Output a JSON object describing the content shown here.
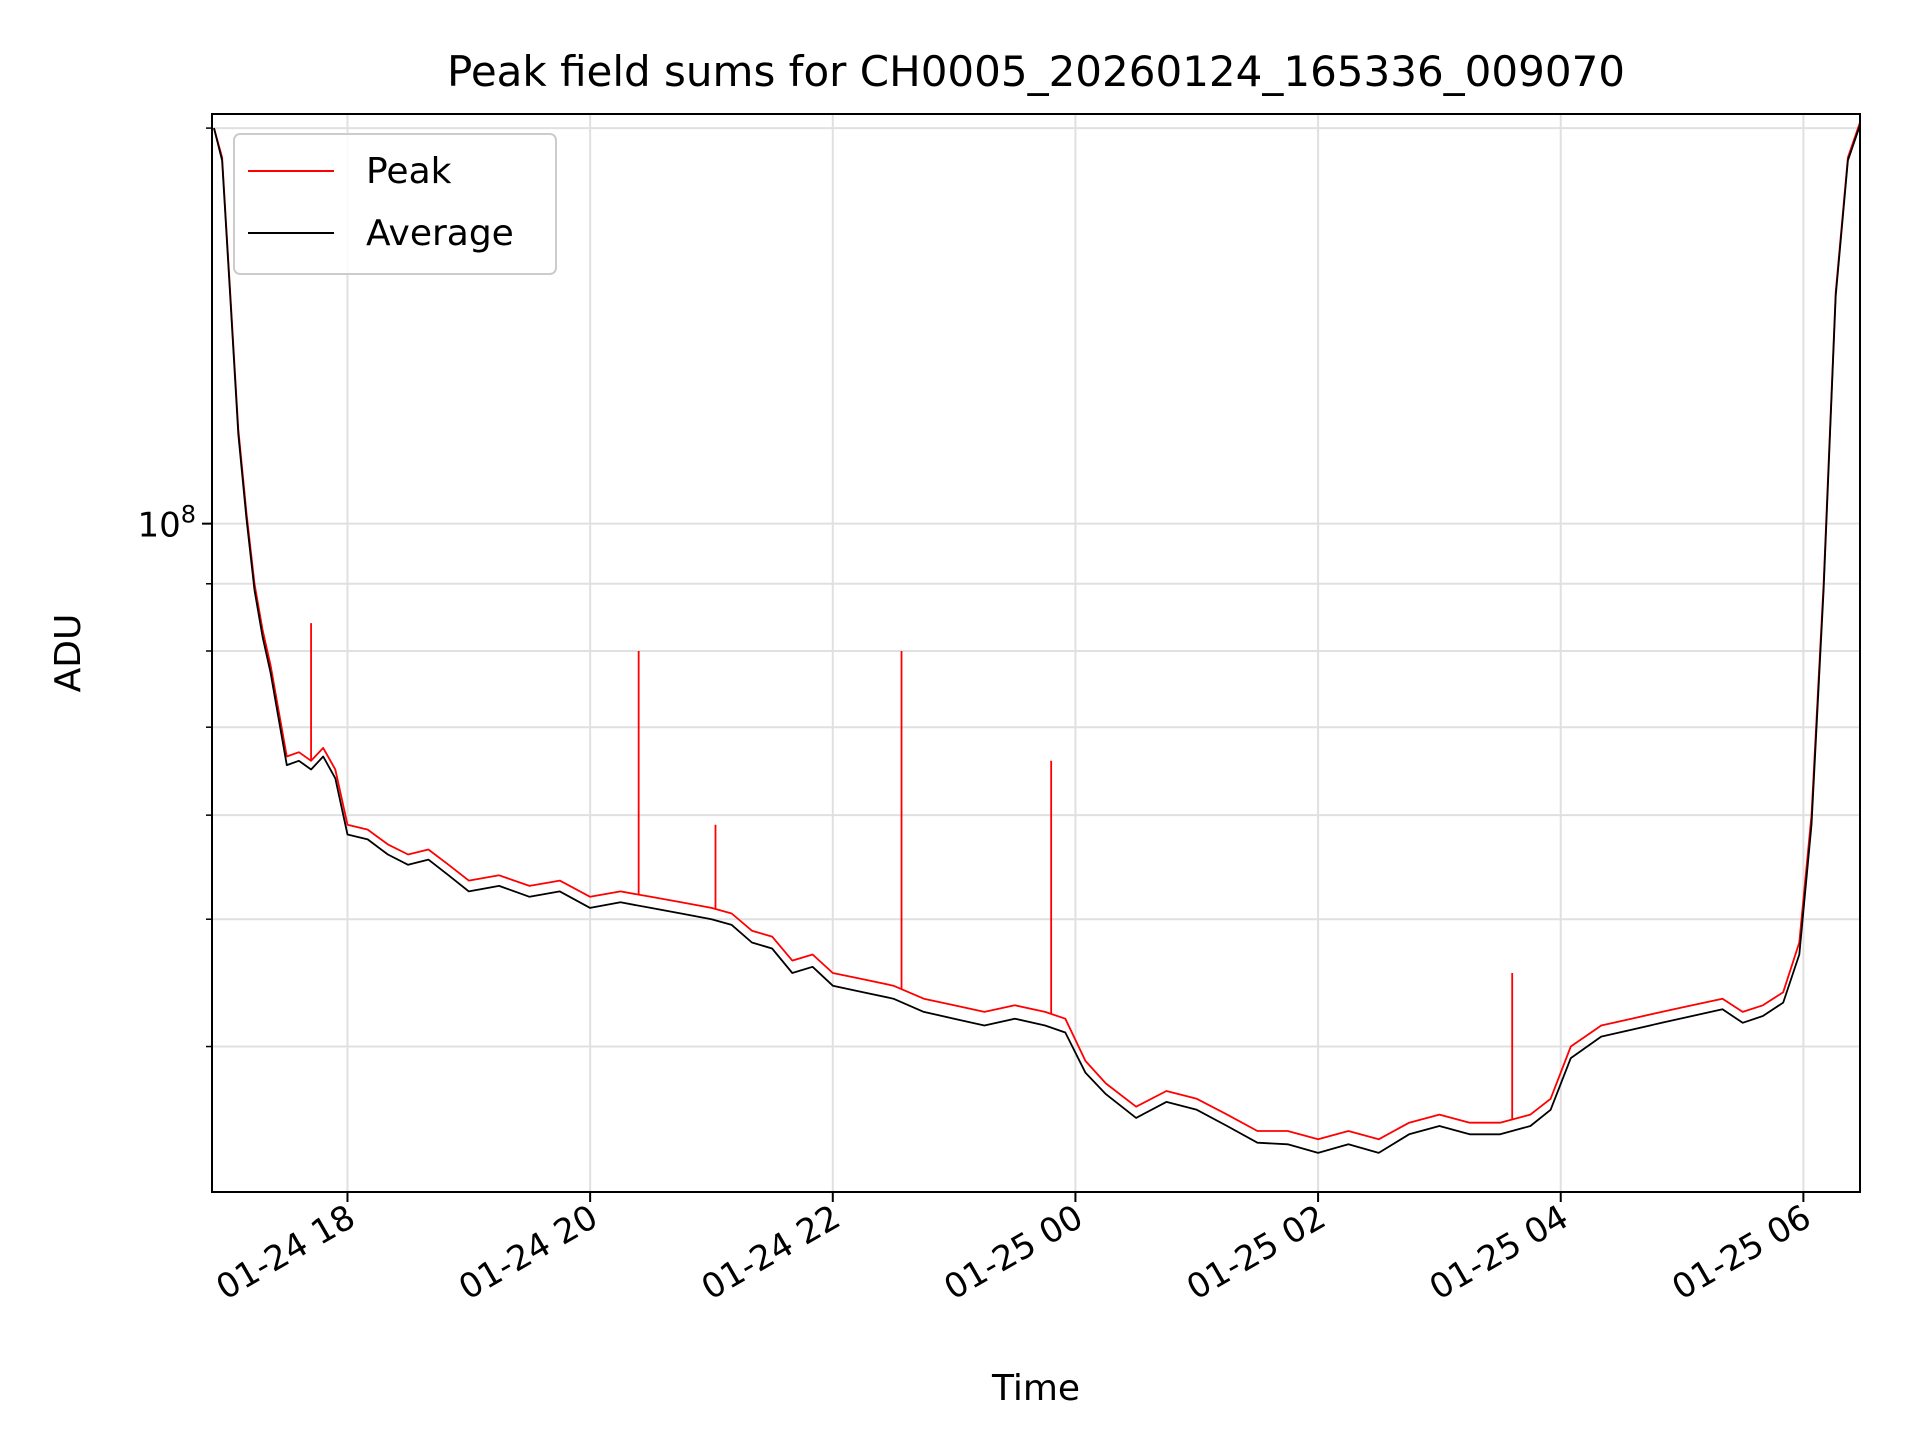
{
  "chart_data": {
    "type": "line",
    "title": "Peak field sums for CH0005_20260124_165336_009070",
    "xlabel": "Time",
    "ylabel": "ADU",
    "y_scale": "log",
    "grid": true,
    "legend_position": "top-left",
    "colors": {
      "peak": "#ff0000",
      "average": "#000000",
      "grid": "#e0e0e0"
    },
    "x_ticks": [
      "01-24 18",
      "01-24 20",
      "01-24 22",
      "01-25 00",
      "01-25 02",
      "01-25 04",
      "01-25 06"
    ],
    "x_tick_times": [
      "2026-01-24T18:00",
      "2026-01-24T20:00",
      "2026-01-24T22:00",
      "2026-01-25T00:00",
      "2026-01-25T02:00",
      "2026-01-25T04:00",
      "2026-01-25T06:00"
    ],
    "xlim": [
      "2026-01-24T16:53",
      "2026-01-25T06:28"
    ],
    "y_major_tick_label": "10^8",
    "ylim": [
      31000000,
      205000000
    ],
    "y_minor_ticks": [
      40000000,
      50000000,
      60000000,
      70000000,
      80000000,
      90000000,
      200000000
    ],
    "series": [
      {
        "name": "Peak",
        "x": [
          "2026-01-24T16:54",
          "2026-01-24T16:58",
          "2026-01-24T17:02",
          "2026-01-24T17:06",
          "2026-01-24T17:10",
          "2026-01-24T17:14",
          "2026-01-24T17:18",
          "2026-01-24T17:22",
          "2026-01-24T17:26",
          "2026-01-24T17:30",
          "2026-01-24T17:36",
          "2026-01-24T17:42",
          "2026-01-24T17:48",
          "2026-01-24T17:54",
          "2026-01-24T18:00",
          "2026-01-24T18:10",
          "2026-01-24T18:20",
          "2026-01-24T18:30",
          "2026-01-24T18:40",
          "2026-01-24T18:50",
          "2026-01-24T19:00",
          "2026-01-24T19:15",
          "2026-01-24T19:30",
          "2026-01-24T19:45",
          "2026-01-24T20:00",
          "2026-01-24T20:15",
          "2026-01-24T20:30",
          "2026-01-24T20:45",
          "2026-01-24T21:00",
          "2026-01-24T21:10",
          "2026-01-24T21:20",
          "2026-01-24T21:30",
          "2026-01-24T21:40",
          "2026-01-24T21:50",
          "2026-01-24T22:00",
          "2026-01-24T22:15",
          "2026-01-24T22:30",
          "2026-01-24T22:45",
          "2026-01-24T23:00",
          "2026-01-24T23:15",
          "2026-01-24T23:30",
          "2026-01-24T23:45",
          "2026-01-24T23:55",
          "2026-01-25T00:05",
          "2026-01-25T00:15",
          "2026-01-25T00:30",
          "2026-01-25T00:45",
          "2026-01-25T01:00",
          "2026-01-25T01:15",
          "2026-01-25T01:30",
          "2026-01-25T01:45",
          "2026-01-25T02:00",
          "2026-01-25T02:15",
          "2026-01-25T02:30",
          "2026-01-25T02:45",
          "2026-01-25T03:00",
          "2026-01-25T03:15",
          "2026-01-25T03:30",
          "2026-01-25T03:45",
          "2026-01-25T03:55",
          "2026-01-25T04:05",
          "2026-01-25T04:20",
          "2026-01-25T04:35",
          "2026-01-25T04:50",
          "2026-01-25T05:05",
          "2026-01-25T05:20",
          "2026-01-25T05:30",
          "2026-01-25T05:40",
          "2026-01-25T05:50",
          "2026-01-25T05:58",
          "2026-01-25T06:04",
          "2026-01-25T06:10",
          "2026-01-25T06:16",
          "2026-01-25T06:22",
          "2026-01-25T06:28"
        ],
        "values": [
          200000000,
          190000000,
          150000000,
          118000000,
          102000000,
          90000000,
          83000000,
          78000000,
          72000000,
          66500000,
          67000000,
          66000000,
          67500000,
          65000000,
          59000000,
          58500000,
          57000000,
          56000000,
          56500000,
          55000000,
          53500000,
          54000000,
          53000000,
          53500000,
          52000000,
          52500000,
          52000000,
          51500000,
          51000000,
          50500000,
          49000000,
          48500000,
          46500000,
          47000000,
          45500000,
          45000000,
          44500000,
          43500000,
          43000000,
          42500000,
          43000000,
          42500000,
          42000000,
          39000000,
          37500000,
          36000000,
          37000000,
          36500000,
          35500000,
          34500000,
          34500000,
          34000000,
          34500000,
          34000000,
          35000000,
          35500000,
          35000000,
          35000000,
          35500000,
          36500000,
          40000000,
          41500000,
          42000000,
          42500000,
          43000000,
          43500000,
          42500000,
          43000000,
          44000000,
          48000000,
          60000000,
          90000000,
          150000000,
          190000000,
          202000000
        ]
      },
      {
        "name": "Average",
        "x": [
          "2026-01-24T16:54",
          "2026-01-24T16:58",
          "2026-01-24T17:02",
          "2026-01-24T17:06",
          "2026-01-24T17:10",
          "2026-01-24T17:14",
          "2026-01-24T17:18",
          "2026-01-24T17:22",
          "2026-01-24T17:26",
          "2026-01-24T17:30",
          "2026-01-24T17:36",
          "2026-01-24T17:42",
          "2026-01-24T17:48",
          "2026-01-24T17:54",
          "2026-01-24T18:00",
          "2026-01-24T18:10",
          "2026-01-24T18:20",
          "2026-01-24T18:30",
          "2026-01-24T18:40",
          "2026-01-24T18:50",
          "2026-01-24T19:00",
          "2026-01-24T19:15",
          "2026-01-24T19:30",
          "2026-01-24T19:45",
          "2026-01-24T20:00",
          "2026-01-24T20:15",
          "2026-01-24T20:30",
          "2026-01-24T20:45",
          "2026-01-24T21:00",
          "2026-01-24T21:10",
          "2026-01-24T21:20",
          "2026-01-24T21:30",
          "2026-01-24T21:40",
          "2026-01-24T21:50",
          "2026-01-24T22:00",
          "2026-01-24T22:15",
          "2026-01-24T22:30",
          "2026-01-24T22:45",
          "2026-01-24T23:00",
          "2026-01-24T23:15",
          "2026-01-24T23:30",
          "2026-01-24T23:45",
          "2026-01-24T23:55",
          "2026-01-25T00:05",
          "2026-01-25T00:15",
          "2026-01-25T00:30",
          "2026-01-25T00:45",
          "2026-01-25T01:00",
          "2026-01-25T01:15",
          "2026-01-25T01:30",
          "2026-01-25T01:45",
          "2026-01-25T02:00",
          "2026-01-25T02:15",
          "2026-01-25T02:30",
          "2026-01-25T02:45",
          "2026-01-25T03:00",
          "2026-01-25T03:15",
          "2026-01-25T03:30",
          "2026-01-25T03:45",
          "2026-01-25T03:55",
          "2026-01-25T04:05",
          "2026-01-25T04:20",
          "2026-01-25T04:35",
          "2026-01-25T04:50",
          "2026-01-25T05:05",
          "2026-01-25T05:20",
          "2026-01-25T05:30",
          "2026-01-25T05:40",
          "2026-01-25T05:50",
          "2026-01-25T05:58",
          "2026-01-25T06:04",
          "2026-01-25T06:10",
          "2026-01-25T06:16",
          "2026-01-25T06:22",
          "2026-01-25T06:28"
        ],
        "values": [
          200000000,
          189000000,
          149000000,
          117000000,
          101000000,
          89000000,
          82000000,
          77000000,
          71000000,
          65500000,
          66000000,
          65000000,
          66500000,
          64000000,
          58000000,
          57500000,
          56000000,
          55000000,
          55500000,
          54000000,
          52500000,
          53000000,
          52000000,
          52500000,
          51000000,
          51500000,
          51000000,
          50500000,
          50000000,
          49500000,
          48000000,
          47500000,
          45500000,
          46000000,
          44500000,
          44000000,
          43500000,
          42500000,
          42000000,
          41500000,
          42000000,
          41500000,
          41000000,
          38200000,
          36800000,
          35300000,
          36300000,
          35800000,
          34800000,
          33800000,
          33700000,
          33200000,
          33700000,
          33200000,
          34300000,
          34800000,
          34300000,
          34300000,
          34800000,
          35800000,
          39200000,
          40700000,
          41200000,
          41700000,
          42200000,
          42700000,
          41700000,
          42200000,
          43200000,
          47000000,
          59000000,
          89000000,
          149000000,
          189000000,
          201000000
        ]
      }
    ],
    "spikes": [
      {
        "x": "2026-01-24T17:42",
        "value": 84000000
      },
      {
        "x": "2026-01-24T20:24",
        "value": 80000000
      },
      {
        "x": "2026-01-24T21:02",
        "value": 59000000
      },
      {
        "x": "2026-01-24T22:34",
        "value": 80000000
      },
      {
        "x": "2026-01-24T23:48",
        "value": 66000000
      },
      {
        "x": "2026-01-25T03:36",
        "value": 45500000
      }
    ]
  }
}
